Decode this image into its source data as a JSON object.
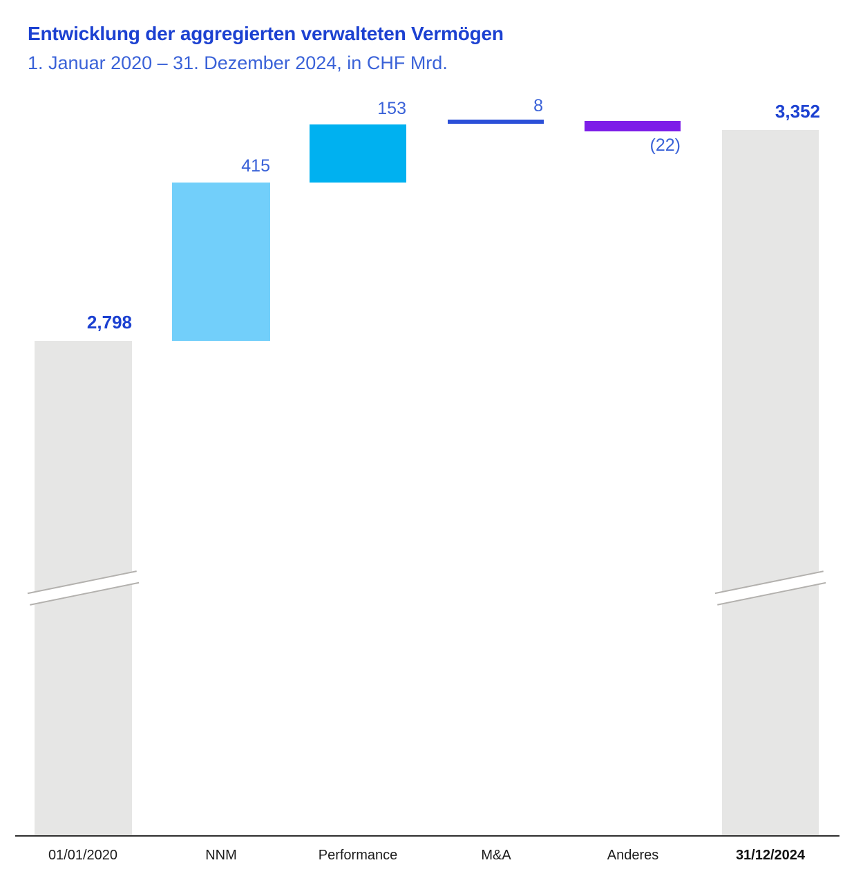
{
  "header": {
    "title": "Entwicklung der aggregierten verwalteten Vermögen",
    "subtitle": "1. Januar 2020 – 31. Dezember 2024, in CHF Mrd."
  },
  "chart_data": {
    "type": "bar",
    "subtype": "waterfall",
    "title": "Entwicklung der aggregierten verwalteten Vermögen",
    "subtitle": "1. Januar 2020 – 31. Dezember 2024, in CHF Mrd.",
    "unit": "CHF Mrd.",
    "period": "1. Januar 2020 – 31. Dezember 2024",
    "grid": false,
    "legend": false,
    "axis_break_on_total_bars": true,
    "categories": [
      "01/01/2020",
      "NNM",
      "Performance",
      "M&A",
      "Anderes",
      "31/12/2024"
    ],
    "values": [
      2798,
      415,
      153,
      8,
      -22,
      3352
    ],
    "columns": [
      {
        "label": "01/01/2020",
        "value": 2798,
        "value_label": "2,798",
        "role": "total-start",
        "color": "#e6e6e5"
      },
      {
        "label": "NNM",
        "value": 415,
        "value_label": "415",
        "role": "increase",
        "color": "#72cffa"
      },
      {
        "label": "Performance",
        "value": 153,
        "value_label": "153",
        "role": "increase",
        "color": "#00b1f0"
      },
      {
        "label": "M&A",
        "value": 8,
        "value_label": "8",
        "role": "increase",
        "color": "#2b4fd8"
      },
      {
        "label": "Anderes",
        "value": -22,
        "value_label": "(22)",
        "role": "decrease",
        "color": "#7d1ee8"
      },
      {
        "label": "31/12/2024",
        "value": 3352,
        "value_label": "3,352",
        "role": "total-end",
        "color": "#e6e6e5"
      }
    ],
    "colors": {
      "title_blue": "#1c41d1",
      "value_label_blue": "#3a62d8",
      "total_bar_gray": "#e6e6e5",
      "nnm_bar": "#72cffa",
      "performance_bar": "#00b1f0",
      "ma_bar": "#2b4fd8",
      "anderes_bar": "#7d1ee8",
      "axis_line": "#2e2e2e",
      "break_line_gray": "#b3b1ae"
    }
  }
}
